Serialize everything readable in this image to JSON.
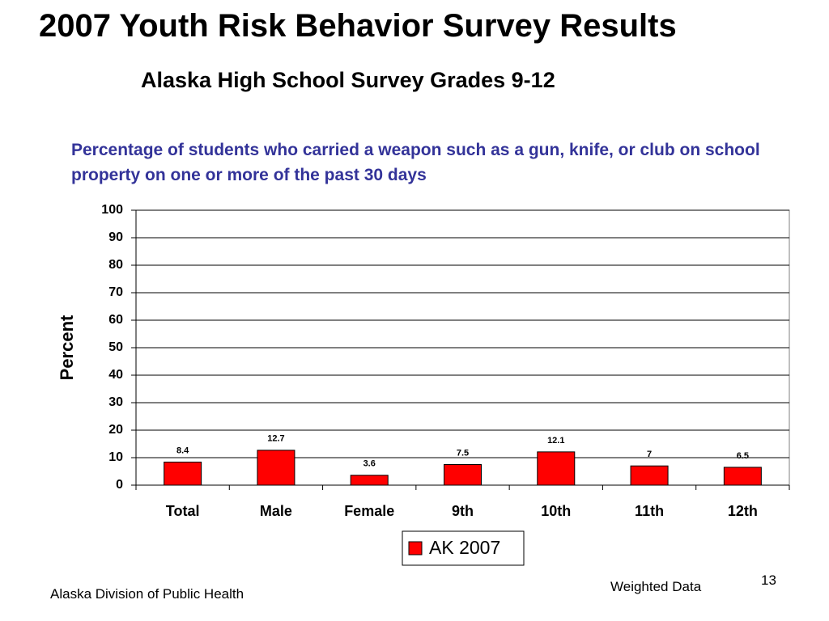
{
  "slide": {
    "title": "2007 Youth Risk Behavior Survey Results",
    "subtitle": "Alaska High School Survey Grades 9-12",
    "footer_left": "Alaska Division of Public Health",
    "footer_right": "Weighted Data",
    "page_number": "13"
  },
  "chart_data": {
    "type": "bar",
    "title": "Percentage of students who carried a weapon such as a gun, knife, or club on school property on one or more of the past 30 days",
    "y_label": "Percent",
    "categories": [
      "Total",
      "Male",
      "Female",
      "9th",
      "10th",
      "11th",
      "12th"
    ],
    "series": [
      {
        "name": "AK 2007",
        "color": "#ff0000",
        "values": [
          8.4,
          12.7,
          3.6,
          7.5,
          12.1,
          7,
          6.5
        ]
      }
    ],
    "ylim": [
      0,
      100
    ],
    "yticks": [
      0,
      10,
      20,
      30,
      40,
      50,
      60,
      70,
      80,
      90,
      100
    ],
    "grid": true,
    "legend": "bottom"
  }
}
